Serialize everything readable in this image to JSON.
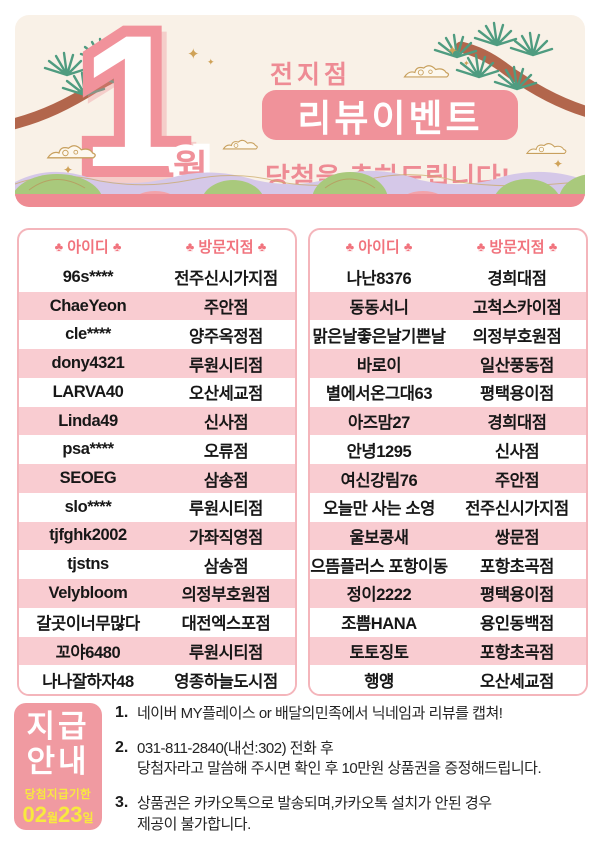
{
  "header": {
    "month_number": "1",
    "month_suffix": "월",
    "subtitle": "전지점",
    "title": "리뷰이벤트",
    "congrats": "당첨을 축하드립니다!"
  },
  "icons": {
    "club": "♣",
    "sparkle": "✦"
  },
  "table_header": {
    "id": "아이디",
    "branch": "방문지점"
  },
  "tables": [
    {
      "rows": [
        {
          "id": "96s****",
          "branch": "전주신시가지점"
        },
        {
          "id": "ChaeYeon",
          "branch": "주안점"
        },
        {
          "id": "cle****",
          "branch": "양주옥정점"
        },
        {
          "id": "dony4321",
          "branch": "루원시티점"
        },
        {
          "id": "LARVA40",
          "branch": "오산세교점"
        },
        {
          "id": "Linda49",
          "branch": "신사점"
        },
        {
          "id": "psa****",
          "branch": "오류점"
        },
        {
          "id": "SEOEG",
          "branch": "삼송점"
        },
        {
          "id": "slo****",
          "branch": "루원시티점"
        },
        {
          "id": "tjfghk2002",
          "branch": "가좌직영점"
        },
        {
          "id": "tjstns",
          "branch": "삼송점"
        },
        {
          "id": "Velybloom",
          "branch": "의정부호원점"
        },
        {
          "id": "갈곳이너무많다",
          "branch": "대전엑스포점"
        },
        {
          "id": "꼬야6480",
          "branch": "루원시티점"
        },
        {
          "id": "나나잘하자48",
          "branch": "영종하늘도시점"
        }
      ]
    },
    {
      "rows": [
        {
          "id": "나난8376",
          "branch": "경희대점"
        },
        {
          "id": "동동서니",
          "branch": "고척스카이점"
        },
        {
          "id": "맑은날좋은날기쁜날",
          "branch": "의정부호원점"
        },
        {
          "id": "바로이",
          "branch": "일산풍동점"
        },
        {
          "id": "별에서온그대63",
          "branch": "평택용이점"
        },
        {
          "id": "아즈맘27",
          "branch": "경희대점"
        },
        {
          "id": "안녕1295",
          "branch": "신사점"
        },
        {
          "id": "여신강림76",
          "branch": "주안점"
        },
        {
          "id": "오늘만 사는 소영",
          "branch": "전주신시가지점"
        },
        {
          "id": "울보콩새",
          "branch": "쌍문점"
        },
        {
          "id": "으뜸플러스 포항이동",
          "branch": "포항초곡점"
        },
        {
          "id": "정이2222",
          "branch": "평택용이점"
        },
        {
          "id": "조쁨HANA",
          "branch": "용인동백점"
        },
        {
          "id": "토토징토",
          "branch": "포항초곡점"
        },
        {
          "id": "행얭",
          "branch": "오산세교점"
        }
      ]
    }
  ],
  "notice": {
    "badge": {
      "line1": "지급",
      "line2": "안내",
      "deadline_label": "당첨지급기한",
      "deadline_month": "02",
      "deadline_month_suffix": "월",
      "deadline_day": "23",
      "deadline_day_suffix": "일"
    },
    "items": [
      {
        "num": "1.",
        "lines": [
          "네이버 MY플레이스 or 배달의민족에서 닉네임과 리뷰를 캡쳐!"
        ]
      },
      {
        "num": "2.",
        "lines": [
          "031-811-2840(내선:302) 전화 후",
          "당첨자라고 말씀해 주시면 확인 후 10만원 상품권을 증정해드립니다."
        ]
      },
      {
        "num": "3.",
        "lines": [
          "상품권은 카카오톡으로 발송되며,카카오톡 설치가 안된 경우",
          "제공이 불가합니다."
        ]
      }
    ]
  },
  "colors": {
    "accent_pink": "#f0929a",
    "text_pink": "#ee8b94",
    "row_pink": "#f9ccd1",
    "table_border": "#f4b5bb",
    "cream": "#f9f1e7",
    "badge_yellow": "#f8e93f",
    "hill_green": "#a9c97c",
    "hill_purple": "#d5c8e8",
    "tree_green": "#4f9c80",
    "tree_brown": "#b2664c",
    "gold": "#c8a05e"
  }
}
